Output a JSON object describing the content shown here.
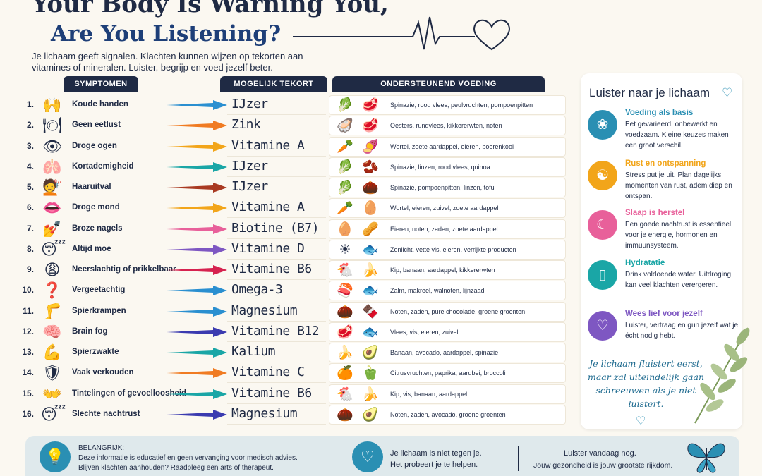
{
  "title": {
    "line1": "Your Body Is Warning You,",
    "line2": "Are You Listening?"
  },
  "intro": "Je lichaam geeft signalen. Klachten kunnen wijzen op tekorten aan vitamines of mineralen. Luister, begrijp en voed jezelf beter.",
  "headers": {
    "symptomen": "SYMPTOMEN",
    "tekort": "MOGELIJK TEKORT",
    "voeding": "ONDERSTEUNEND VOEDING"
  },
  "rows": [
    {
      "num": "1.",
      "icon": "🙌",
      "symptom": "Koude handen",
      "tekort": "IJzer",
      "arrow_color": "#2a8fd0",
      "foods": [
        "🥬",
        "🥩"
      ],
      "voeding": "Spinazie, rood vlees, peulvruchten, pompoenpitten"
    },
    {
      "num": "2.",
      "icon": "🍽",
      "symptom": "Geen eetlust",
      "tekort": "Zink",
      "arrow_color": "#f07b22",
      "foods": [
        "🦪",
        "🥩"
      ],
      "voeding": "Oesters, rundvlees, kikkererwten, noten"
    },
    {
      "num": "3.",
      "icon": "👁",
      "symptom": "Droge ogen",
      "tekort": "Vitamine A",
      "arrow_color": "#f2a51a",
      "foods": [
        "🥕",
        "🍠"
      ],
      "voeding": "Wortel, zoete aardappel, eieren, boerenkool"
    },
    {
      "num": "4.",
      "icon": "🫁",
      "symptom": "Kortademigheid",
      "tekort": "IJzer",
      "arrow_color": "#1aa6a6",
      "foods": [
        "🥬",
        "🫘"
      ],
      "voeding": "Spinazie, linzen, rood vlees, quinoa"
    },
    {
      "num": "5.",
      "icon": "💇",
      "symptom": "Haaruitval",
      "tekort": "IJzer",
      "arrow_color": "#a93a22",
      "foods": [
        "🥬",
        "🌰"
      ],
      "voeding": "Spinazie, pompoenpitten, linzen, tofu"
    },
    {
      "num": "6.",
      "icon": "👄",
      "symptom": "Droge mond",
      "tekort": "Vitamine A",
      "arrow_color": "#f2a51a",
      "foods": [
        "🥕",
        "🥚"
      ],
      "voeding": "Wortel, eieren, zuivel, zoete aardappel"
    },
    {
      "num": "7.",
      "icon": "💅",
      "symptom": "Broze nagels",
      "tekort": "Biotine (B7)",
      "arrow_color": "#e8609a",
      "foods": [
        "🥚",
        "🥜"
      ],
      "voeding": "Eieren, noten, zaden, zoete aardappel"
    },
    {
      "num": "8.",
      "icon": "😴",
      "symptom": "Altijd moe",
      "tekort": "Vitamine D",
      "arrow_color": "#7e57c2",
      "foods": [
        "☀",
        "🐟"
      ],
      "voeding": "Zonlicht, vette vis, eieren, verrijkte producten"
    },
    {
      "num": "9.",
      "icon": "😩",
      "symptom": "Neerslachtig of prikkelbaar",
      "tekort": "Vitamine B6",
      "arrow_color": "#d6224f",
      "foods": [
        "🐔",
        "🍌"
      ],
      "voeding": "Kip, banaan, aardappel, kikkererwten"
    },
    {
      "num": "10.",
      "icon": "❓",
      "symptom": "Vergeetachtig",
      "tekort": "Omega-3",
      "arrow_color": "#2a8fd0",
      "foods": [
        "🍣",
        "🐟"
      ],
      "voeding": "Zalm, makreel, walnoten, lijnzaad"
    },
    {
      "num": "11.",
      "icon": "🦵",
      "symptom": "Spierkrampen",
      "tekort": "Magnesium",
      "arrow_color": "#2a8fd0",
      "foods": [
        "🌰",
        "🍫"
      ],
      "voeding": "Noten, zaden, pure chocolade, groene groenten"
    },
    {
      "num": "12.",
      "icon": "🧠",
      "symptom": "Brain fog",
      "tekort": "Vitamine B12",
      "arrow_color": "#3b3bb0",
      "foods": [
        "🥩",
        "🐟"
      ],
      "voeding": "Vlees, vis, eieren, zuivel"
    },
    {
      "num": "13.",
      "icon": "💪",
      "symptom": "Spierzwakte",
      "tekort": "Kalium",
      "arrow_color": "#1aa6a6",
      "foods": [
        "🍌",
        "🥑"
      ],
      "voeding": "Banaan, avocado, aardappel, spinazie"
    },
    {
      "num": "14.",
      "icon": "🛡",
      "symptom": "Vaak verkouden",
      "tekort": "Vitamine C",
      "arrow_color": "#f07b22",
      "foods": [
        "🍊",
        "🫑"
      ],
      "voeding": "Citrusvruchten, paprika, aardbei, broccoli"
    },
    {
      "num": "15.",
      "icon": "👐",
      "symptom": "Tintelingen of gevoelloosheid",
      "tekort": "Vitamine B6",
      "arrow_color": "#1aa6a6",
      "foods": [
        "🐔",
        "🍌"
      ],
      "voeding": "Kip, vis, banaan, aardappel"
    },
    {
      "num": "16.",
      "icon": "😴",
      "symptom": "Slechte nachtrust",
      "tekort": "Magnesium",
      "arrow_color": "#3b3bb0",
      "foods": [
        "🌰",
        "🥑"
      ],
      "voeding": "Noten, zaden, avocado, groene groenten"
    }
  ],
  "panel": {
    "title": "Luister naar je lichaam",
    "tips": [
      {
        "icon": "lotus-icon",
        "glyph": "❀",
        "color": "#2a8fb3",
        "title": "Voeding als basis",
        "text": "Eet gevarieerd, onbewerkt en voedzaam. Kleine keuzes maken een groot verschil."
      },
      {
        "icon": "meditation-icon",
        "glyph": "☯",
        "color": "#f2a51a",
        "title": "Rust en ontspanning",
        "text": "Stress put je uit. Plan dagelijks momenten van rust, adem diep en ontspan."
      },
      {
        "icon": "moon-icon",
        "glyph": "☾",
        "color": "#e8609a",
        "title": "Slaap is herstel",
        "text": "Een goede nachtrust is essentieel voor je energie, hormonen en immuunsysteem."
      },
      {
        "icon": "glass-icon",
        "glyph": "▯",
        "color": "#1aa6a6",
        "title": "Hydratatie",
        "text": "Drink voldoende water. Uitdroging kan veel klachten verergeren."
      },
      {
        "icon": "heart-icon",
        "glyph": "♡",
        "color": "#7e57c2",
        "title": "Wees lief voor jezelf",
        "text": "Luister, vertraag en gun jezelf wat je écht nodig hebt."
      }
    ],
    "quote": "Je lichaam fluistert eerst, maar zal uiteindelijk gaan schreeuwen als je niet luistert."
  },
  "banner": {
    "title": "BELANGRIJK:",
    "line1": "Deze informatie is educatief en geen vervanging voor medisch advies.",
    "line2": "Blijven klachten aanhouden? Raadpleeg een arts of therapeut.",
    "mid1": "Je lichaam is niet tegen je.",
    "mid2": "Het probeert je te helpen.",
    "right1": "Luister vandaag nog.",
    "right2": "Jouw gezondheid is jouw grootste rijkdom."
  }
}
